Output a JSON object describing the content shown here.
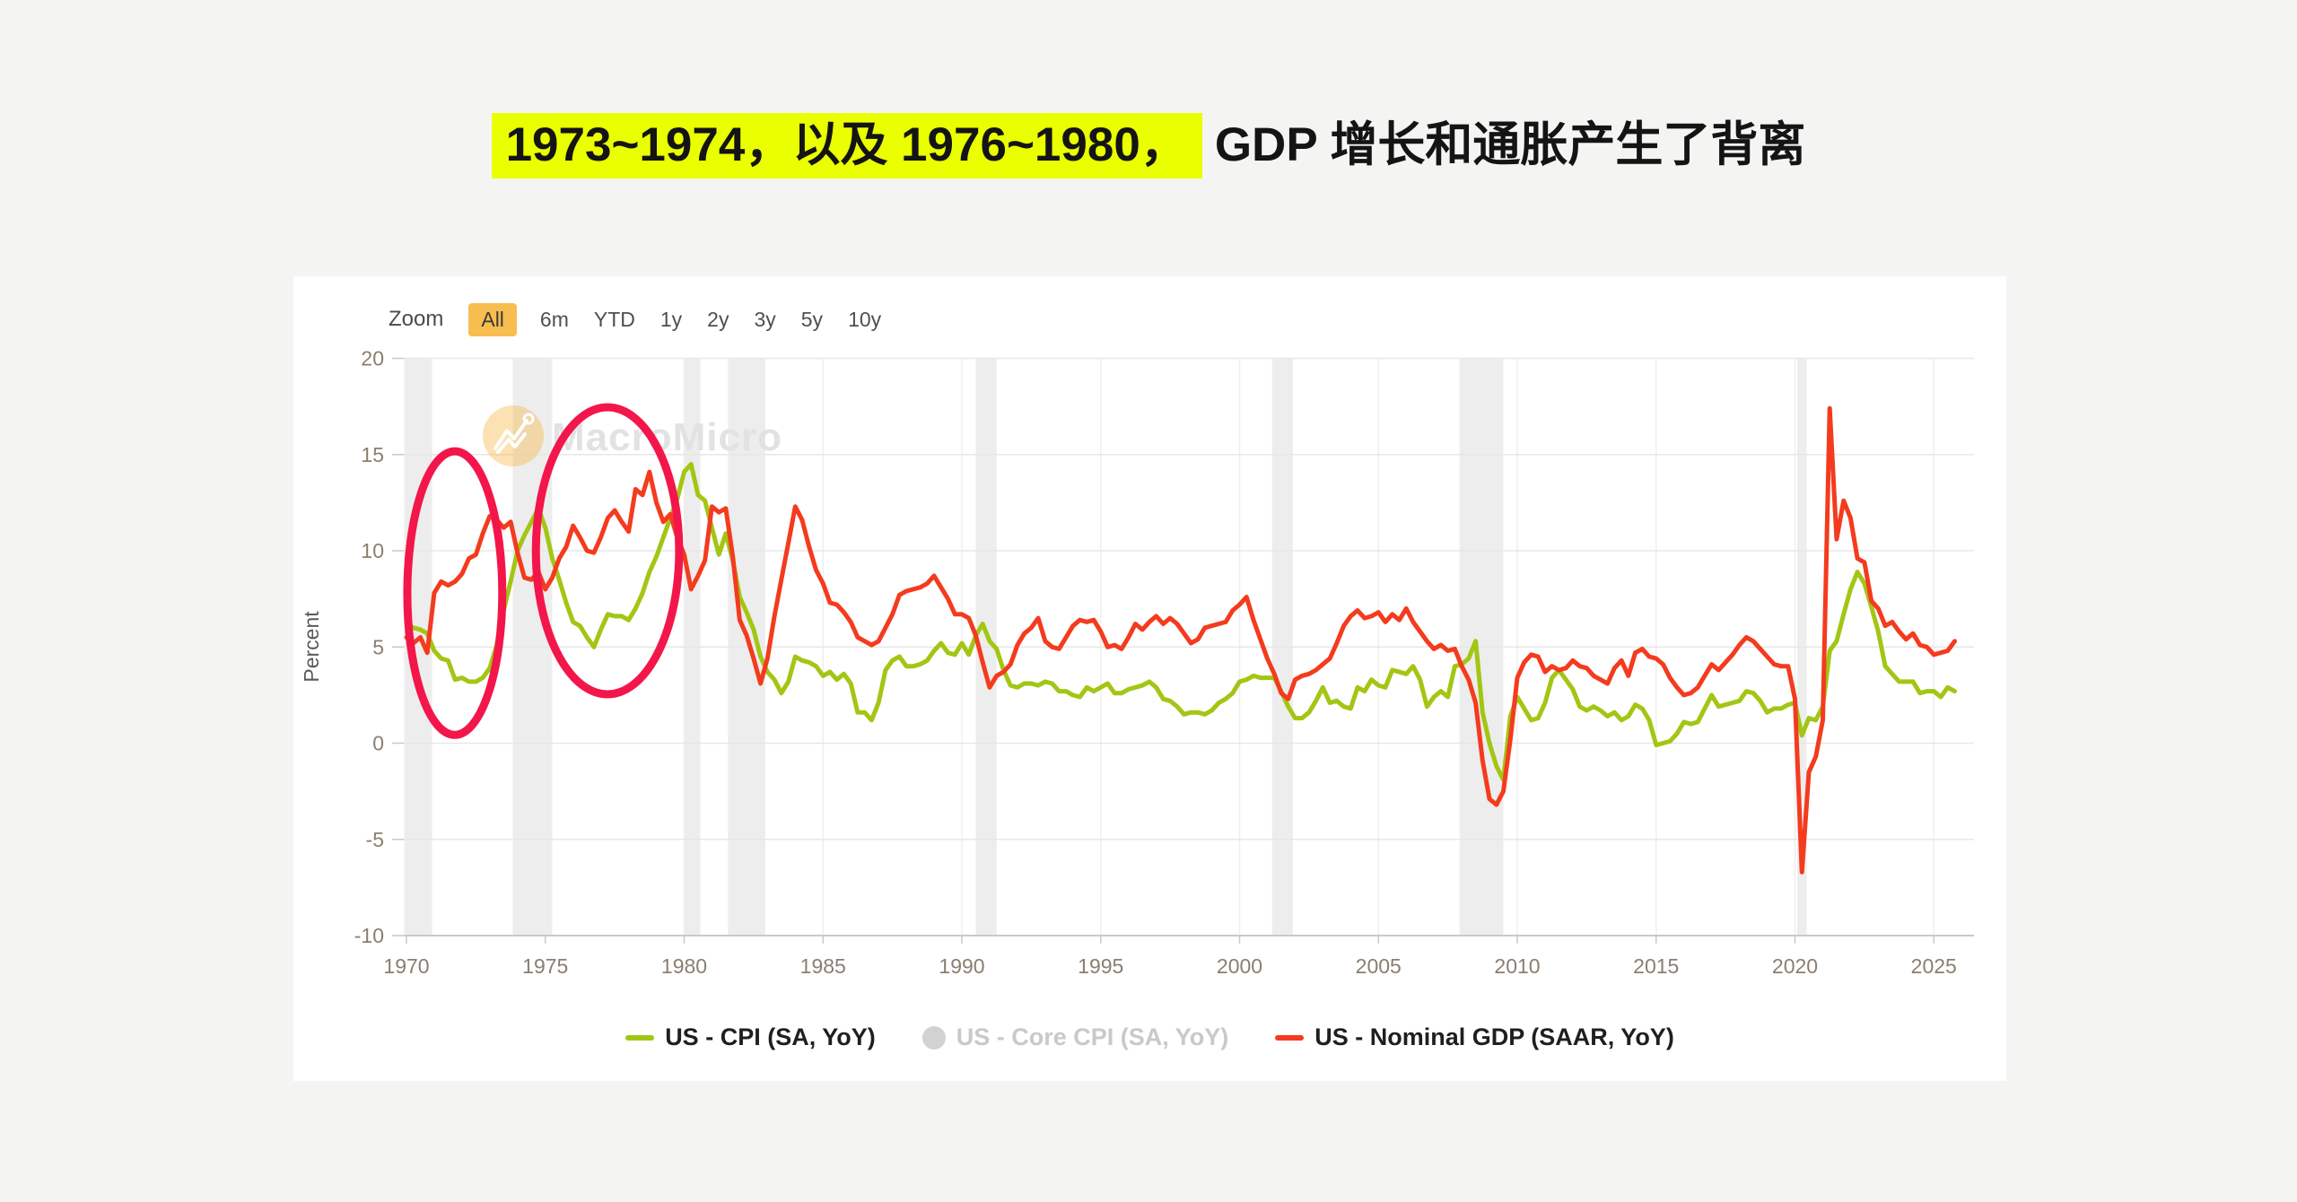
{
  "page": {
    "background": "#f4f4f3",
    "title": {
      "highlight_text": "1973~1974，以及 1976~1980，",
      "normal_text": "GDP 增长和通胀产生了背离",
      "highlight_color": "#eaff00",
      "text_color": "#141414"
    }
  },
  "toolbar": {
    "zoom_label": "Zoom",
    "active_button_color": "#f7bd4e",
    "buttons": [
      {
        "label": "All",
        "active": true
      },
      {
        "label": "6m",
        "active": false
      },
      {
        "label": "YTD",
        "active": false
      },
      {
        "label": "1y",
        "active": false
      },
      {
        "label": "2y",
        "active": false
      },
      {
        "label": "3y",
        "active": false
      },
      {
        "label": "5y",
        "active": false
      },
      {
        "label": "10y",
        "active": false
      }
    ]
  },
  "chart": {
    "watermark_text": "MacroMicro",
    "y_axis_title": "Percent"
  },
  "chart_data": {
    "type": "line",
    "title": "",
    "xlabel": "",
    "ylabel": "Percent",
    "ylim": [
      -10,
      20
    ],
    "grid": true,
    "legend_position": "bottom",
    "x_start": 1970.0,
    "x_step": 0.25,
    "x_end": 2025.75,
    "xticks": [
      1970,
      1975,
      1980,
      1985,
      1990,
      1995,
      2000,
      2005,
      2010,
      2015,
      2020,
      2025
    ],
    "yticks": [
      20,
      15,
      10,
      5,
      0,
      -5,
      -10
    ],
    "recession_bands": [
      [
        1969.92,
        1970.92
      ],
      [
        1973.83,
        1975.25
      ],
      [
        1980.0,
        1980.58
      ],
      [
        1981.58,
        1982.92
      ],
      [
        1990.5,
        1991.25
      ],
      [
        2001.17,
        2001.92
      ],
      [
        2007.92,
        2009.5
      ],
      [
        2020.08,
        2020.42
      ]
    ],
    "band_color": "#ededed",
    "series": [
      {
        "name": "US - CPI (SA, YoY)",
        "color": "#a2c613",
        "visible": true,
        "values": [
          6.2,
          6.0,
          5.9,
          5.7,
          4.8,
          4.4,
          4.3,
          3.3,
          3.4,
          3.2,
          3.2,
          3.4,
          3.9,
          5.1,
          6.9,
          8.4,
          10.0,
          10.8,
          11.5,
          12.2,
          11.2,
          9.6,
          8.5,
          7.3,
          6.3,
          6.1,
          5.5,
          5.0,
          5.9,
          6.7,
          6.6,
          6.6,
          6.4,
          7.0,
          7.8,
          8.9,
          9.7,
          10.7,
          11.7,
          12.7,
          14.1,
          14.5,
          12.9,
          12.6,
          11.2,
          9.8,
          10.9,
          9.5,
          7.6,
          6.8,
          5.9,
          4.5,
          3.7,
          3.3,
          2.6,
          3.2,
          4.5,
          4.3,
          4.2,
          4.0,
          3.5,
          3.7,
          3.3,
          3.6,
          3.1,
          1.6,
          1.6,
          1.2,
          2.1,
          3.8,
          4.3,
          4.5,
          4.0,
          4.0,
          4.1,
          4.3,
          4.8,
          5.2,
          4.7,
          4.6,
          5.2,
          4.6,
          5.6,
          6.2,
          5.3,
          4.9,
          3.8,
          3.0,
          2.9,
          3.1,
          3.1,
          3.0,
          3.2,
          3.1,
          2.7,
          2.7,
          2.5,
          2.4,
          2.9,
          2.7,
          2.9,
          3.1,
          2.6,
          2.6,
          2.8,
          2.9,
          3.0,
          3.2,
          2.9,
          2.3,
          2.2,
          1.9,
          1.5,
          1.6,
          1.6,
          1.5,
          1.7,
          2.1,
          2.3,
          2.6,
          3.2,
          3.3,
          3.5,
          3.4,
          3.4,
          3.4,
          2.7,
          1.9,
          1.3,
          1.3,
          1.6,
          2.2,
          2.9,
          2.1,
          2.2,
          1.9,
          1.8,
          2.9,
          2.7,
          3.3,
          3.0,
          2.9,
          3.8,
          3.7,
          3.6,
          4.0,
          3.3,
          1.9,
          2.4,
          2.7,
          2.4,
          4.0,
          4.1,
          4.4,
          5.3,
          1.6,
          0.0,
          -1.2,
          -1.9,
          1.4,
          2.4,
          1.8,
          1.2,
          1.3,
          2.1,
          3.4,
          3.8,
          3.3,
          2.8,
          1.9,
          1.7,
          1.9,
          1.7,
          1.4,
          1.6,
          1.2,
          1.4,
          2.0,
          1.8,
          1.2,
          -0.1,
          0.0,
          0.1,
          0.5,
          1.1,
          1.0,
          1.1,
          1.8,
          2.5,
          1.9,
          2.0,
          2.1,
          2.2,
          2.7,
          2.6,
          2.2,
          1.6,
          1.8,
          1.8,
          2.0,
          2.1,
          0.4,
          1.3,
          1.2,
          1.9,
          4.8,
          5.3,
          6.7,
          8.0,
          8.9,
          8.3,
          7.1,
          5.8,
          4.0,
          3.6,
          3.2,
          3.2,
          3.2,
          2.6,
          2.7,
          2.7,
          2.4,
          2.9,
          2.7
        ]
      },
      {
        "name": "US - Core CPI (SA, YoY)",
        "color": "#d2d2d2",
        "visible": false,
        "values": []
      },
      {
        "name": "US - Nominal GDP (SAAR, YoY)",
        "color": "#f43b1e",
        "visible": true,
        "values": [
          5.5,
          5.2,
          5.5,
          4.7,
          7.8,
          8.4,
          8.2,
          8.4,
          8.8,
          9.6,
          9.8,
          10.9,
          11.8,
          11.6,
          11.2,
          11.5,
          9.9,
          8.6,
          8.5,
          8.9,
          8.0,
          8.6,
          9.6,
          10.2,
          11.3,
          10.7,
          10.0,
          9.9,
          10.7,
          11.7,
          12.1,
          11.5,
          11.0,
          13.2,
          12.9,
          14.1,
          12.5,
          11.5,
          11.9,
          10.7,
          9.8,
          8.0,
          8.7,
          9.5,
          12.3,
          12.0,
          12.2,
          9.7,
          6.4,
          5.6,
          4.4,
          3.1,
          4.4,
          6.6,
          8.5,
          10.4,
          12.3,
          11.6,
          10.2,
          9.0,
          8.3,
          7.3,
          7.2,
          6.8,
          6.3,
          5.5,
          5.3,
          5.1,
          5.3,
          6.0,
          6.7,
          7.7,
          7.9,
          8.0,
          8.1,
          8.3,
          8.7,
          8.1,
          7.5,
          6.7,
          6.7,
          6.5,
          5.6,
          4.2,
          2.9,
          3.5,
          3.7,
          4.1,
          5.1,
          5.7,
          6.0,
          6.5,
          5.3,
          5.0,
          4.9,
          5.5,
          6.1,
          6.4,
          6.3,
          6.4,
          5.8,
          5.0,
          5.1,
          4.9,
          5.5,
          6.2,
          5.9,
          6.3,
          6.6,
          6.2,
          6.5,
          6.2,
          5.7,
          5.2,
          5.4,
          6.0,
          6.1,
          6.2,
          6.3,
          6.9,
          7.2,
          7.6,
          6.4,
          5.4,
          4.4,
          3.6,
          2.6,
          2.3,
          3.3,
          3.5,
          3.6,
          3.8,
          4.1,
          4.4,
          5.2,
          6.1,
          6.6,
          6.9,
          6.5,
          6.6,
          6.8,
          6.3,
          6.7,
          6.4,
          7.0,
          6.3,
          5.8,
          5.3,
          4.9,
          5.1,
          4.8,
          4.9,
          4.0,
          3.3,
          2.1,
          -0.9,
          -2.9,
          -3.2,
          -2.5,
          0.2,
          3.4,
          4.2,
          4.6,
          4.5,
          3.7,
          4.0,
          3.8,
          3.9,
          4.3,
          4.0,
          3.9,
          3.5,
          3.3,
          3.1,
          3.9,
          4.3,
          3.5,
          4.7,
          4.9,
          4.5,
          4.4,
          4.1,
          3.4,
          2.9,
          2.5,
          2.6,
          2.9,
          3.5,
          4.1,
          3.8,
          4.2,
          4.6,
          5.1,
          5.5,
          5.3,
          4.9,
          4.5,
          4.1,
          4.0,
          4.0,
          2.3,
          -6.7,
          -1.5,
          -0.7,
          1.2,
          17.4,
          10.6,
          12.6,
          11.7,
          9.6,
          9.4,
          7.4,
          7.0,
          6.1,
          6.3,
          5.8,
          5.4,
          5.7,
          5.1,
          5.0,
          4.6,
          4.7,
          4.8,
          5.3
        ]
      }
    ],
    "annotations": {
      "color": "#f3164b",
      "ellipses": [
        {
          "cx_year": 1971.74,
          "cy_value": 7.8,
          "rx_years": 1.71,
          "ry_values": 7.37
        },
        {
          "cx_year": 1977.24,
          "cy_value": 10.0,
          "rx_years": 2.58,
          "ry_values": 7.46
        }
      ]
    }
  },
  "legend": {
    "items": [
      {
        "label": "US - CPI (SA, YoY)",
        "color": "#a2c613",
        "marker": "line",
        "muted": false
      },
      {
        "label": "US - Core CPI (SA, YoY)",
        "color": "#d2d2d2",
        "marker": "circle",
        "muted": true
      },
      {
        "label": "US - Nominal GDP (SAAR, YoY)",
        "color": "#f43b1e",
        "marker": "line",
        "muted": false
      }
    ]
  }
}
